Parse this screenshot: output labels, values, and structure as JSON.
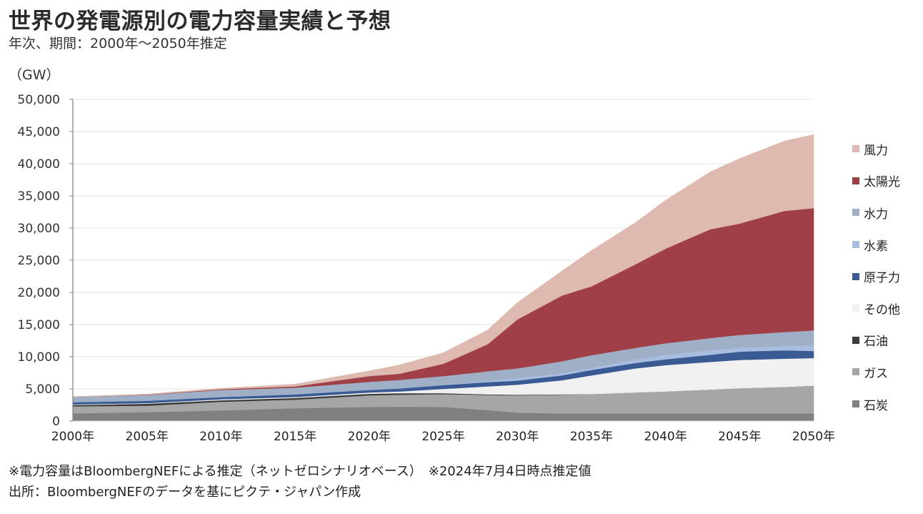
{
  "header": {
    "title": "世界の発電源別の電力容量実績と予想",
    "subtitle": "年次、期間：2000年～2050年推定",
    "unit": "（GW）"
  },
  "footer": {
    "note": "※電力容量はBloombergNEFによる推定（ネットゼロシナリオベース）　※2024年7月4日時点推定値",
    "source": "出所：BloombergNEFのデータを基にピクテ・ジャパン作成"
  },
  "chart_data": {
    "type": "area",
    "stacked": true,
    "title": "世界の発電源別の電力容量実績と予想",
    "subtitle": "年次、期間：2000年～2050年推定",
    "xlabel": "",
    "ylabel": "（GW）",
    "ylim": [
      0,
      50000
    ],
    "xlim": [
      2000,
      2050
    ],
    "grid": true,
    "legend_position": "right",
    "yticks": [
      0,
      5000,
      10000,
      15000,
      20000,
      25000,
      30000,
      35000,
      40000,
      45000,
      50000
    ],
    "ytick_labels": [
      "0",
      "5,000",
      "10,000",
      "15,000",
      "20,000",
      "25,000",
      "30,000",
      "35,000",
      "40,000",
      "45,000",
      "50,000"
    ],
    "xticks": [
      2000,
      2005,
      2010,
      2015,
      2020,
      2025,
      2030,
      2035,
      2040,
      2045,
      2050
    ],
    "xtick_labels": [
      "2000年",
      "2005年",
      "2010年",
      "2015年",
      "2020年",
      "2025年",
      "2030年",
      "2035年",
      "2040年",
      "2045年",
      "2050年"
    ],
    "x": [
      2000,
      2005,
      2010,
      2015,
      2020,
      2022,
      2025,
      2028,
      2030,
      2033,
      2035,
      2038,
      2040,
      2043,
      2045,
      2048,
      2050
    ],
    "series": [
      {
        "name": "石炭",
        "color": "#808080",
        "values": [
          1200,
          1400,
          1650,
          2000,
          2200,
          2250,
          2200,
          1700,
          1300,
          1200,
          1200,
          1200,
          1200,
          1200,
          1200,
          1200,
          1200
        ]
      },
      {
        "name": "ガス",
        "color": "#A6A6A6",
        "values": [
          1100,
          1000,
          1350,
          1350,
          1800,
          1850,
          2000,
          2350,
          2700,
          2900,
          3000,
          3250,
          3400,
          3700,
          3900,
          4100,
          4300
        ]
      },
      {
        "name": "石油",
        "color": "#3A3A3A",
        "values": [
          200,
          300,
          250,
          250,
          250,
          250,
          150,
          100,
          100,
          50,
          0,
          0,
          0,
          0,
          0,
          0,
          0
        ]
      },
      {
        "name": "その他",
        "color": "#F0F0F0",
        "values": [
          100,
          100,
          150,
          150,
          200,
          250,
          650,
          1250,
          1550,
          2200,
          2900,
          3750,
          4100,
          4300,
          4400,
          4400,
          4300
        ]
      },
      {
        "name": "原子力",
        "color": "#3A5A93",
        "values": [
          350,
          350,
          350,
          400,
          400,
          450,
          600,
          650,
          650,
          750,
          850,
          850,
          900,
          1100,
          1300,
          1300,
          1100
        ]
      },
      {
        "name": "水素",
        "color": "#A9BDE0",
        "values": [
          0,
          0,
          0,
          0,
          0,
          0,
          100,
          200,
          400,
          350,
          300,
          550,
          700,
          700,
          600,
          650,
          900
        ]
      },
      {
        "name": "水力",
        "color": "#9EAFC6",
        "values": [
          800,
          900,
          1100,
          1050,
          1250,
          1350,
          1300,
          1500,
          1500,
          1850,
          2000,
          1800,
          1800,
          1900,
          2000,
          2200,
          2300
        ]
      },
      {
        "name": "太陽光",
        "color": "#A03F45",
        "values": [
          0,
          50,
          100,
          200,
          900,
          950,
          1900,
          4200,
          7600,
          10200,
          10700,
          13000,
          14700,
          16900,
          17300,
          18800,
          19000
        ]
      },
      {
        "name": "風力",
        "color": "#DDB9B0",
        "values": [
          50,
          100,
          150,
          350,
          800,
          1350,
          1700,
          2200,
          2600,
          3800,
          5550,
          6500,
          7500,
          8900,
          10100,
          10850,
          11450
        ]
      }
    ],
    "legend_order": [
      "風力",
      "太陽光",
      "水力",
      "水素",
      "原子力",
      "その他",
      "石油",
      "ガス",
      "石炭"
    ]
  }
}
